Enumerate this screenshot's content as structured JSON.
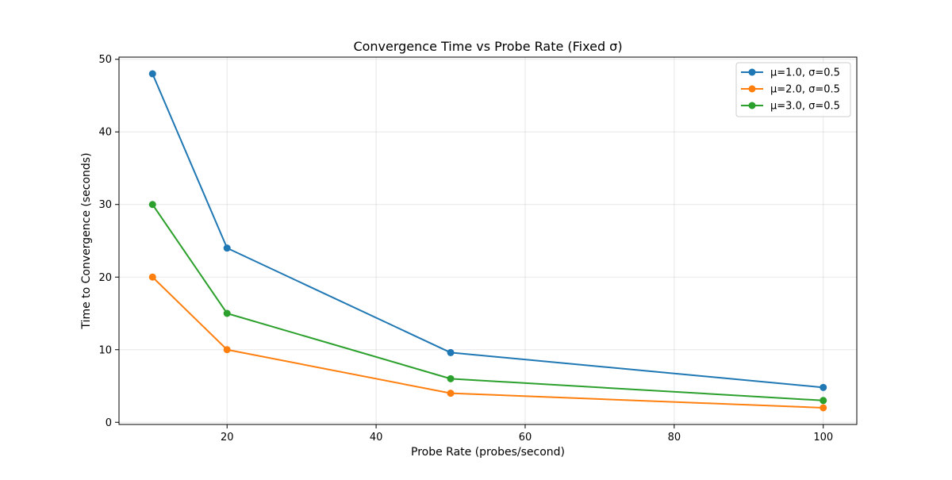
{
  "chart_data": {
    "type": "line",
    "title": "Convergence Time vs Probe Rate (Fixed σ)",
    "xlabel": "Probe Rate (probes/second)",
    "ylabel": "Time to Convergence (seconds)",
    "xlim": [
      5.5,
      104.5
    ],
    "ylim": [
      -0.3,
      50.3
    ],
    "xticks": [
      20,
      40,
      60,
      80,
      100
    ],
    "yticks": [
      0,
      10,
      20,
      30,
      40,
      50
    ],
    "grid": true,
    "legend_position": "top-right",
    "x": [
      10,
      20,
      50,
      100
    ],
    "series": [
      {
        "name": "μ=1.0, σ=0.5",
        "color": "#1f77b4",
        "values": [
          48,
          24,
          9.6,
          4.8
        ]
      },
      {
        "name": "μ=2.0, σ=0.5",
        "color": "#ff7f0e",
        "values": [
          20,
          10,
          4,
          2
        ]
      },
      {
        "name": "μ=3.0, σ=0.5",
        "color": "#2ca02c",
        "values": [
          30,
          15,
          6,
          3
        ]
      }
    ]
  }
}
